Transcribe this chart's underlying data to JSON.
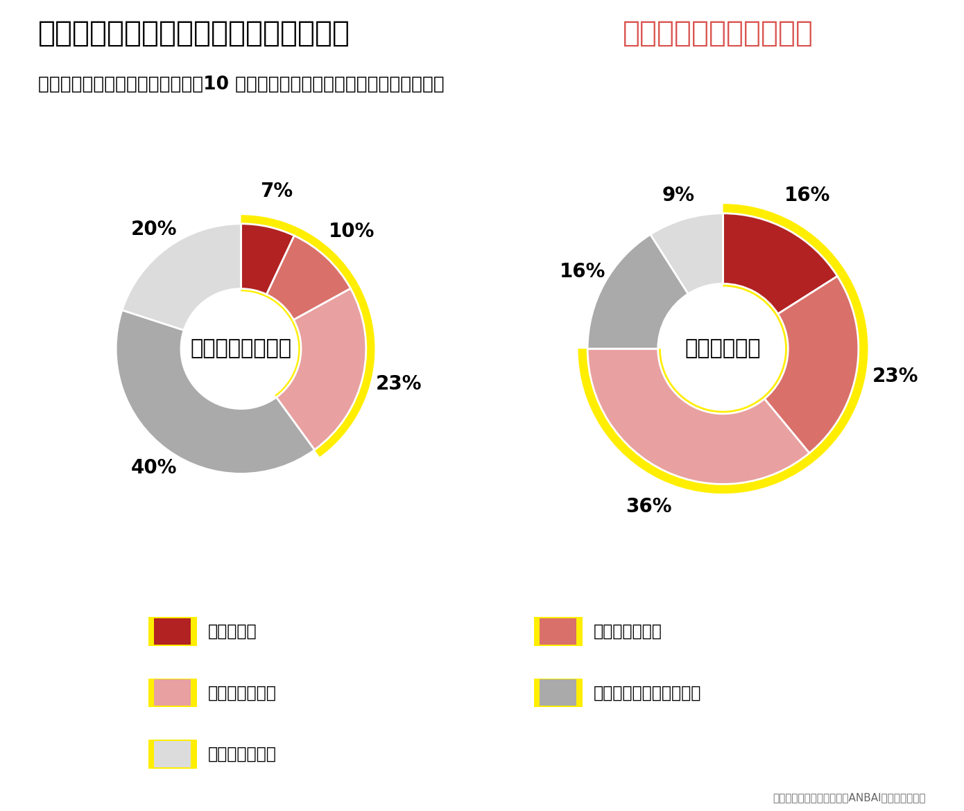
{
  "title_black": "会議過多のエース社員の突然休職を防ぐ",
  "title_red": "「会議間インターバル」",
  "subtitle": "打ち合わせが連続する場合、５〜10 分程度の休憩を設けることを実践している",
  "chart1_label": "隠れテレワ負債者",
  "chart2_label": "低ストレス者",
  "chart1_values": [
    7,
    10,
    23,
    40,
    20
  ],
  "chart2_values": [
    16,
    23,
    36,
    16,
    9
  ],
  "colors": [
    "#b22222",
    "#d9706a",
    "#e8a0a0",
    "#aaaaaa",
    "#dcdcdc"
  ],
  "yellow": "#ffee00",
  "background": "#ffffff",
  "chart1_labels": [
    "7%",
    "10%",
    "23%",
    "40%",
    "20%"
  ],
  "chart2_labels": [
    "16%",
    "23%",
    "36%",
    "16%",
    "9%"
  ],
  "source_text": "ストレス客観評価アプリ「ANBAI」を用いた調査",
  "legend_left": [
    {
      "label": "当てはまる",
      "color": "#b22222"
    },
    {
      "label": "少し当てはまる",
      "color": "#e8a0a0"
    },
    {
      "label": "当てはまらない",
      "color": "#dcdcdc"
    }
  ],
  "legend_right": [
    {
      "label": "ほぼ当てはまる",
      "color": "#d9706a"
    },
    {
      "label": "ほとんど当てはまらない",
      "color": "#aaaaaa"
    }
  ]
}
